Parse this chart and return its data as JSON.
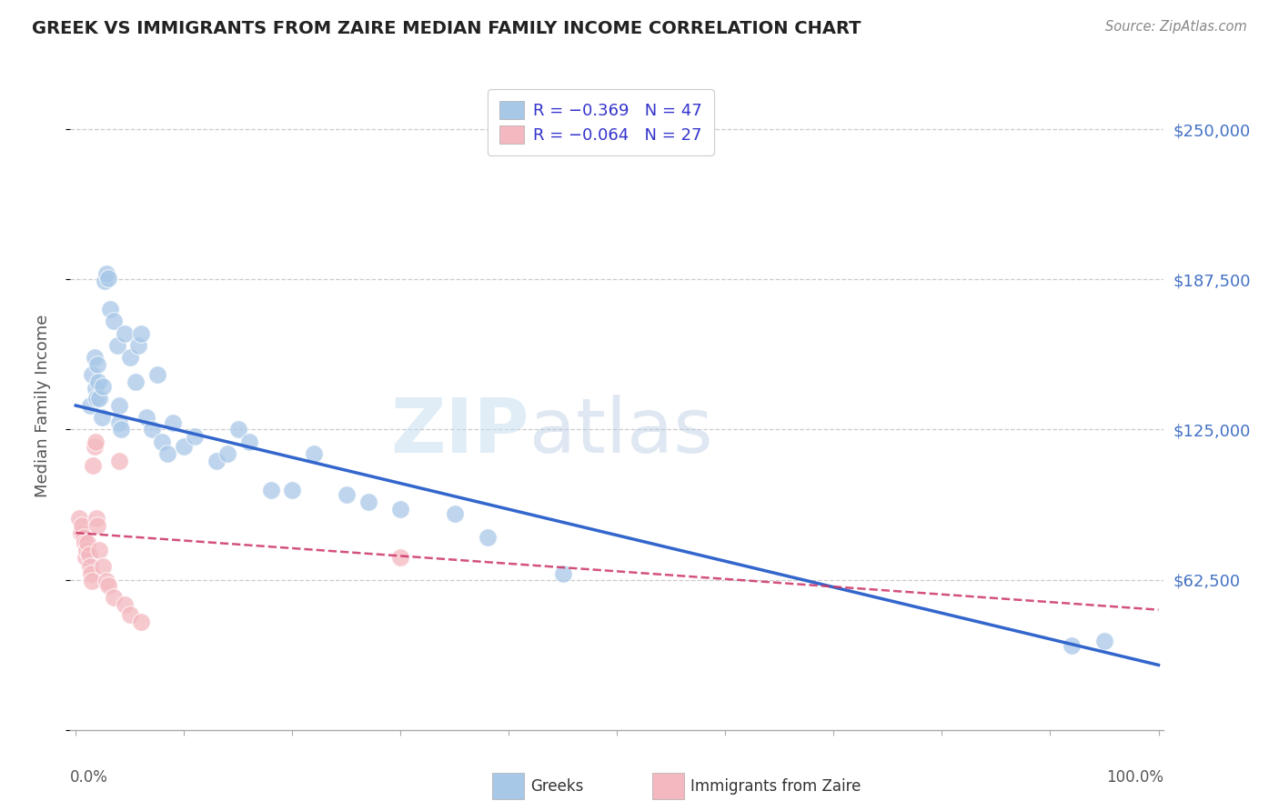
{
  "title": "GREEK VS IMMIGRANTS FROM ZAIRE MEDIAN FAMILY INCOME CORRELATION CHART",
  "source": "Source: ZipAtlas.com",
  "ylabel": "Median Family Income",
  "ylim": [
    0,
    270000
  ],
  "xlim": [
    -0.005,
    1.005
  ],
  "watermark_zip": "ZIP",
  "watermark_atlas": "atlas",
  "legend_greek_r": "R = −0.369",
  "legend_greek_n": "N = 47",
  "legend_zaire_r": "R = −0.064",
  "legend_zaire_n": "N = 27",
  "greek_color": "#a8c8e8",
  "zaire_color": "#f4b8c0",
  "greek_line_color": "#3366cc",
  "zaire_line_color": "#cc3366",
  "blue_scatter_x": [
    0.013,
    0.015,
    0.017,
    0.018,
    0.019,
    0.02,
    0.021,
    0.022,
    0.024,
    0.025,
    0.027,
    0.028,
    0.03,
    0.032,
    0.035,
    0.038,
    0.04,
    0.04,
    0.042,
    0.045,
    0.05,
    0.055,
    0.058,
    0.06,
    0.065,
    0.07,
    0.075,
    0.08,
    0.085,
    0.09,
    0.1,
    0.11,
    0.13,
    0.14,
    0.15,
    0.16,
    0.18,
    0.2,
    0.22,
    0.25,
    0.27,
    0.3,
    0.35,
    0.38,
    0.45,
    0.92,
    0.95
  ],
  "blue_scatter_y": [
    135000,
    148000,
    155000,
    142000,
    138000,
    152000,
    145000,
    138000,
    130000,
    143000,
    187000,
    190000,
    188000,
    175000,
    170000,
    160000,
    135000,
    128000,
    125000,
    165000,
    155000,
    145000,
    160000,
    165000,
    130000,
    125000,
    148000,
    120000,
    115000,
    128000,
    118000,
    122000,
    112000,
    115000,
    125000,
    120000,
    100000,
    100000,
    115000,
    98000,
    95000,
    92000,
    90000,
    80000,
    65000,
    35000,
    37000
  ],
  "pink_scatter_x": [
    0.003,
    0.005,
    0.006,
    0.007,
    0.008,
    0.009,
    0.01,
    0.011,
    0.012,
    0.013,
    0.014,
    0.015,
    0.016,
    0.017,
    0.018,
    0.019,
    0.02,
    0.022,
    0.025,
    0.028,
    0.03,
    0.035,
    0.04,
    0.045,
    0.05,
    0.06,
    0.3
  ],
  "pink_scatter_y": [
    88000,
    82000,
    85000,
    80000,
    78000,
    72000,
    75000,
    78000,
    73000,
    68000,
    65000,
    62000,
    110000,
    118000,
    120000,
    88000,
    85000,
    75000,
    68000,
    62000,
    60000,
    55000,
    112000,
    52000,
    48000,
    45000,
    72000
  ],
  "blue_line_x0": 0.0,
  "blue_line_x1": 1.0,
  "blue_line_y0": 135000,
  "blue_line_y1": 27000,
  "pink_line_x0": 0.0,
  "pink_line_x1": 1.0,
  "pink_line_y0": 82000,
  "pink_line_y1": 50000,
  "ytick_vals": [
    0,
    62500,
    125000,
    187500,
    250000
  ],
  "ytick_labels_right": [
    "",
    "$62,500",
    "$125,000",
    "$187,500",
    "$250,000"
  ],
  "background_color": "#ffffff",
  "grid_color": "#cccccc",
  "title_color": "#222222",
  "right_label_color": "#4472c4",
  "source_color": "#888888",
  "legend_greek_label": "Greeks",
  "legend_zaire_label": "Immigrants from Zaire"
}
